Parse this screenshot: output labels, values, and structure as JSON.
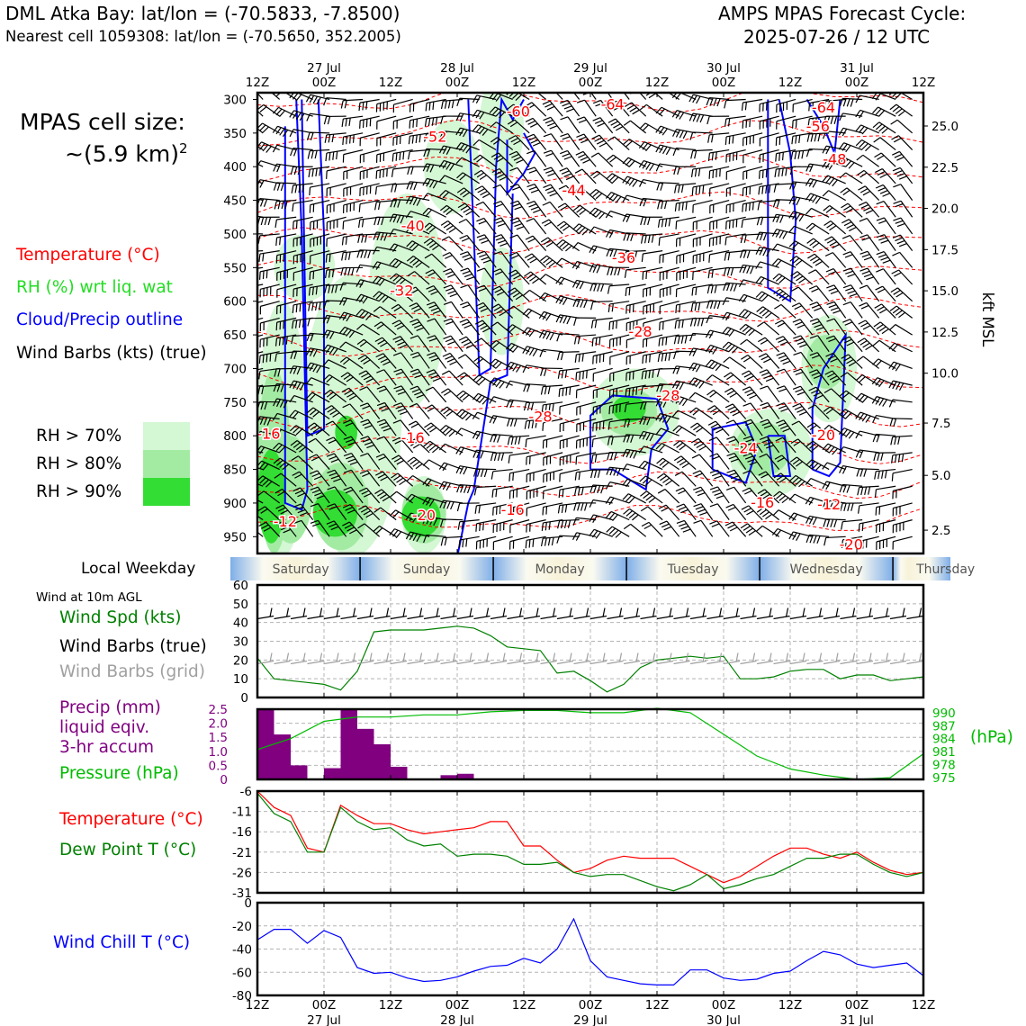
{
  "header": {
    "station": "DML Atka Bay: lat/lon = (-70.5833, -7.8500)",
    "nearest_cell": "Nearest cell 1059308: lat/lon = (-70.5650, 352.2005)",
    "cycle_title": "AMPS MPAS Forecast Cycle:",
    "cycle_time": "2025-07-26 / 12 UTC"
  },
  "cell_size": {
    "line1": "MPAS cell size:",
    "line2": "~(5.9 km)",
    "sup": "2"
  },
  "legend_upper": {
    "temperature": "Temperature (°C)",
    "rh": "RH (%) wrt liq. wat",
    "cloud": "Cloud/Precip outline",
    "wind": "Wind Barbs (kts) (true)",
    "rh70": "RH > 70%",
    "rh80": "RH > 80%",
    "rh90": "RH > 90%"
  },
  "weekday_label": "Local Weekday",
  "wind10m_label": "Wind at 10m AGL",
  "panel_labels": {
    "wind_spd": "Wind Spd (kts)",
    "barbs_true": "Wind Barbs (true)",
    "barbs_grid": "Wind Barbs (grid)",
    "precip1": "Precip (mm)",
    "precip2": "liquid eqiv.",
    "precip3": "3-hr accum",
    "pressure": "Pressure (hPa)",
    "hpa_unit": "(hPa)",
    "temp": "Temperature (°C)",
    "dew": "Dew Point T (°C)",
    "chill": "Wind Chill T (°C)"
  },
  "colors": {
    "temperature": "#ff0000",
    "rh": "#22dd22",
    "cloud": "#0000ff",
    "wind_grid": "#a0a0a0",
    "precip": "#800080",
    "pressure": "#00bb00",
    "dewpoint": "#008000",
    "windchill": "#0000ff",
    "rh70": "#d4f7d4",
    "rh80": "#a3eba3",
    "rh90": "#33dd33"
  },
  "chart_data": [
    {
      "type": "heatmap",
      "name": "Vertical cross-section (time-height)",
      "x_ticks_top": [
        {
          "hour": "12Z",
          "date": ""
        },
        {
          "hour": "00Z",
          "date": "27 Jul"
        },
        {
          "hour": "12Z",
          "date": ""
        },
        {
          "hour": "00Z",
          "date": "28 Jul"
        },
        {
          "hour": "12Z",
          "date": ""
        },
        {
          "hour": "00Z",
          "date": "29 Jul"
        },
        {
          "hour": "12Z",
          "date": ""
        },
        {
          "hour": "00Z",
          "date": "30 Jul"
        },
        {
          "hour": "12Z",
          "date": ""
        },
        {
          "hour": "00Z",
          "date": "31 Jul"
        },
        {
          "hour": "12Z",
          "date": ""
        }
      ],
      "y_pressure_ticks": [
        300,
        350,
        400,
        450,
        500,
        550,
        600,
        650,
        700,
        750,
        800,
        850,
        900,
        950
      ],
      "y_pressure_range": [
        975,
        290
      ],
      "y_height_ticks": [
        "25.0",
        "22.5",
        "20.0",
        "17.5",
        "15.0",
        "12.5",
        "10.0",
        "7.5",
        "5.0",
        "2.5"
      ],
      "y_height_label": "kft MSL",
      "temperature_labels": [
        {
          "text": "-60",
          "hour": 47,
          "p": 319
        },
        {
          "text": "-64",
          "hour": 64,
          "p": 308
        },
        {
          "text": "-64",
          "hour": 102,
          "p": 313
        },
        {
          "text": "-52",
          "hour": 32,
          "p": 356
        },
        {
          "text": "-56",
          "hour": 101,
          "p": 341
        },
        {
          "text": "-48",
          "hour": 104,
          "p": 390
        },
        {
          "text": "-44",
          "hour": 57,
          "p": 436
        },
        {
          "text": "-40",
          "hour": 28,
          "p": 489
        },
        {
          "text": "-36",
          "hour": 66,
          "p": 536
        },
        {
          "text": "-32",
          "hour": 26,
          "p": 585
        },
        {
          "text": "-28",
          "hour": 69,
          "p": 646
        },
        {
          "text": "-28",
          "hour": 74,
          "p": 741
        },
        {
          "text": "-28",
          "hour": 51,
          "p": 772
        },
        {
          "text": "-24",
          "hour": 88,
          "p": 819
        },
        {
          "text": "-20",
          "hour": 102,
          "p": 800
        },
        {
          "text": "-16",
          "hour": 2,
          "p": 798
        },
        {
          "text": "-16",
          "hour": 28,
          "p": 804
        },
        {
          "text": "-20",
          "hour": 30,
          "p": 919
        },
        {
          "text": "-16",
          "hour": 46,
          "p": 911
        },
        {
          "text": "-16",
          "hour": 91,
          "p": 900
        },
        {
          "text": "-12",
          "hour": 103,
          "p": 903
        },
        {
          "text": "-12",
          "hour": 5,
          "p": 928
        },
        {
          "text": "-20",
          "hour": 107,
          "p": 962
        }
      ],
      "series": [
        "Temperature (°C)",
        "RH (%) wrt liq. wat",
        "Cloud/Precip outline",
        "Wind Barbs (kts) (true)"
      ]
    },
    {
      "type": "table",
      "name": "Local Weekday",
      "days": [
        "Saturday",
        "Sunday",
        "Monday",
        "Tuesday",
        "Wednesday",
        "Thursday"
      ]
    },
    {
      "type": "line",
      "name": "Wind at 10m AGL",
      "x_hours": [
        0,
        3,
        6,
        9,
        12,
        15,
        18,
        21,
        24,
        27,
        30,
        33,
        36,
        39,
        42,
        45,
        48,
        51,
        54,
        57,
        60,
        63,
        66,
        69,
        72,
        75,
        78,
        81,
        84,
        87,
        90,
        93,
        96,
        99,
        102,
        105,
        108,
        111,
        114,
        117,
        120
      ],
      "series": [
        {
          "name": "Wind Spd (kts)",
          "values": [
            21,
            10,
            9,
            8,
            7,
            4,
            14,
            35,
            36,
            36,
            36,
            37,
            38,
            37,
            33,
            27,
            26,
            25,
            13,
            14,
            9,
            3,
            7,
            16,
            20,
            21,
            22,
            21,
            22,
            10,
            10,
            11,
            14,
            15,
            15,
            10,
            12,
            12,
            9,
            10,
            11
          ]
        }
      ],
      "ylim": [
        0,
        60
      ],
      "yticks": [
        0,
        10,
        20,
        30,
        40,
        50,
        60
      ]
    },
    {
      "type": "bar",
      "name": "Precip (mm) liquid eqiv. 3-hr accum",
      "categories_hours": [
        1.5,
        4.5,
        7.5,
        10.5,
        13.5,
        16.5,
        19.5,
        22.5,
        25.5,
        28.5,
        31.5,
        34.5,
        37.5
      ],
      "values": [
        2.5,
        1.6,
        0.5,
        0,
        0.4,
        2.5,
        1.8,
        1.25,
        0.45,
        0,
        0,
        0.15,
        0.2
      ],
      "ylim": [
        0,
        2.5
      ],
      "yticks": [
        "0",
        "0.5",
        "1.0",
        "1.5",
        "2.0",
        "2.5"
      ],
      "pressure_series": {
        "name": "Pressure (hPa)",
        "x_hours": [
          0,
          6,
          12,
          18,
          24,
          30,
          36,
          42,
          48,
          54,
          60,
          66,
          72,
          78,
          84,
          90,
          96,
          102,
          108,
          114,
          120
        ],
        "values": [
          981.5,
          984,
          988,
          989,
          989,
          989.5,
          989.5,
          990.2,
          990.5,
          990.5,
          990,
          990,
          991,
          990,
          985,
          980,
          977,
          975.6,
          974.6,
          975,
          980.5
        ],
        "ylim": [
          974.6,
          990.8
        ],
        "yticks": [
          "975",
          "978",
          "981",
          "984",
          "987",
          "990"
        ]
      }
    },
    {
      "type": "line",
      "name": "Temperature / Dew Point",
      "x_hours": [
        0,
        3,
        6,
        9,
        12,
        15,
        18,
        21,
        24,
        27,
        30,
        33,
        36,
        39,
        42,
        45,
        48,
        51,
        54,
        57,
        60,
        63,
        66,
        69,
        72,
        75,
        78,
        81,
        84,
        87,
        90,
        93,
        96,
        99,
        102,
        105,
        108,
        111,
        114,
        117,
        120
      ],
      "series": [
        {
          "name": "Temperature (°C)",
          "values": [
            -6,
            -10,
            -12,
            -20,
            -21,
            -9.5,
            -12,
            -14,
            -14,
            -15.5,
            -16.5,
            -16,
            -15.5,
            -15,
            -13.5,
            -13.5,
            -19.5,
            -19.5,
            -23,
            -26,
            -25,
            -23,
            -22,
            -22.5,
            -22.5,
            -22.5,
            -24.5,
            -26.5,
            -28.5,
            -27,
            -24.5,
            -22,
            -20,
            -20,
            -21.5,
            -22.5,
            -21,
            -23.5,
            -25.5,
            -26.5,
            -26
          ]
        },
        {
          "name": "Dew Point T (°C)",
          "values": [
            -6.5,
            -11.5,
            -13.5,
            -21,
            -21,
            -10,
            -13.5,
            -15.5,
            -15,
            -18,
            -19.5,
            -19,
            -22,
            -21.5,
            -21.5,
            -22,
            -24,
            -24,
            -23.5,
            -26,
            -27,
            -26.5,
            -26.5,
            -28,
            -29.5,
            -30.5,
            -29,
            -26.5,
            -30,
            -29,
            -27.5,
            -26.5,
            -24.5,
            -22.5,
            -22.5,
            -21.5,
            -21.5,
            -24,
            -26,
            -27,
            -26
          ]
        }
      ],
      "ylim": [
        -31,
        -6
      ],
      "yticks": [
        -6,
        -11,
        -16,
        -21,
        -26,
        -31
      ]
    },
    {
      "type": "line",
      "name": "Wind Chill T (°C)",
      "x_hours": [
        0,
        3,
        6,
        9,
        12,
        15,
        18,
        21,
        24,
        27,
        30,
        33,
        36,
        39,
        42,
        45,
        48,
        51,
        54,
        57,
        60,
        63,
        66,
        69,
        72,
        75,
        78,
        81,
        84,
        87,
        90,
        93,
        96,
        99,
        102,
        105,
        108,
        111,
        114,
        117,
        120
      ],
      "series": [
        {
          "name": "Wind Chill T (°C)",
          "values": [
            -32,
            -23,
            -23,
            -35,
            -24,
            -30,
            -56,
            -61,
            -60,
            -65,
            -68,
            -67,
            -64,
            -59,
            -55,
            -54,
            -48,
            -52,
            -40,
            -14,
            -50,
            -64,
            -67,
            -70,
            -71,
            -71,
            -58,
            -58,
            -65,
            -67,
            -66,
            -61,
            -59,
            -50,
            -42,
            -45,
            -53,
            -56,
            -54,
            -52,
            -63
          ]
        }
      ],
      "ylim": [
        -80,
        0
      ],
      "yticks": [
        0,
        -20,
        -40,
        -60,
        -80
      ]
    },
    {
      "type": "line",
      "name": "bottom time axis",
      "x_ticks_bottom": [
        {
          "hour": "12Z",
          "date": ""
        },
        {
          "hour": "00Z",
          "date": "27 Jul"
        },
        {
          "hour": "12Z",
          "date": ""
        },
        {
          "hour": "00Z",
          "date": "28 Jul"
        },
        {
          "hour": "12Z",
          "date": ""
        },
        {
          "hour": "00Z",
          "date": "29 Jul"
        },
        {
          "hour": "12Z",
          "date": ""
        },
        {
          "hour": "00Z",
          "date": "30 Jul"
        },
        {
          "hour": "12Z",
          "date": ""
        },
        {
          "hour": "00Z",
          "date": "31 Jul"
        },
        {
          "hour": "12Z",
          "date": ""
        }
      ]
    }
  ]
}
